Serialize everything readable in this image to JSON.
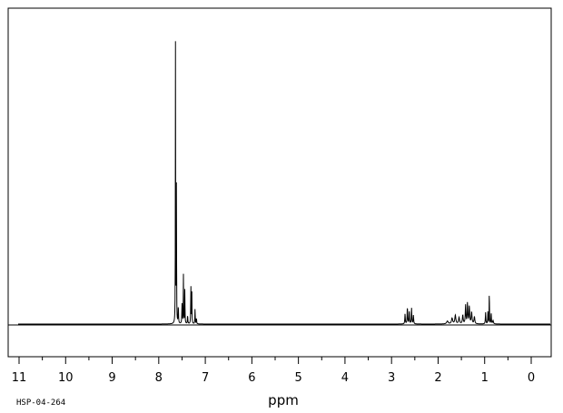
{
  "chart_data": {
    "type": "line",
    "title": "",
    "xlabel": "ppm",
    "ylabel": "",
    "sample_id": "HSP-04-264",
    "x_reversed": true,
    "xlim": [
      11,
      0
    ],
    "ylim": [
      0,
      1
    ],
    "grid": false,
    "line_color": "#000000",
    "tick_labels": [
      "11",
      "10",
      "9",
      "8",
      "7",
      "6",
      "5",
      "4",
      "3",
      "2",
      "1",
      "0"
    ],
    "tick_values": [
      11,
      10,
      9,
      8,
      7,
      6,
      5,
      4,
      3,
      2,
      1,
      0
    ],
    "minor_tick_step": 0.5,
    "peaks": [
      {
        "ppm": 7.64,
        "height": 1.0,
        "width": 0.006
      },
      {
        "ppm": 7.62,
        "height": 0.52,
        "width": 0.006
      },
      {
        "ppm": 7.58,
        "height": 0.06,
        "width": 0.01
      },
      {
        "ppm": 7.5,
        "height": 0.07,
        "width": 0.01
      },
      {
        "ppm": 7.47,
        "height": 0.17,
        "width": 0.008
      },
      {
        "ppm": 7.44,
        "height": 0.12,
        "width": 0.008
      },
      {
        "ppm": 7.38,
        "height": 0.03,
        "width": 0.01
      },
      {
        "ppm": 7.31,
        "height": 0.135,
        "width": 0.008
      },
      {
        "ppm": 7.29,
        "height": 0.11,
        "width": 0.008
      },
      {
        "ppm": 7.22,
        "height": 0.055,
        "width": 0.008
      },
      {
        "ppm": 7.19,
        "height": 0.02,
        "width": 0.01
      },
      {
        "ppm": 2.71,
        "height": 0.035,
        "width": 0.012
      },
      {
        "ppm": 2.66,
        "height": 0.06,
        "width": 0.012
      },
      {
        "ppm": 2.62,
        "height": 0.045,
        "width": 0.012
      },
      {
        "ppm": 2.57,
        "height": 0.055,
        "width": 0.012
      },
      {
        "ppm": 2.53,
        "height": 0.03,
        "width": 0.012
      },
      {
        "ppm": 1.8,
        "height": 0.01,
        "width": 0.04
      },
      {
        "ppm": 1.7,
        "height": 0.02,
        "width": 0.03
      },
      {
        "ppm": 1.63,
        "height": 0.03,
        "width": 0.025
      },
      {
        "ppm": 1.55,
        "height": 0.022,
        "width": 0.025
      },
      {
        "ppm": 1.47,
        "height": 0.03,
        "width": 0.02
      },
      {
        "ppm": 1.41,
        "height": 0.065,
        "width": 0.015
      },
      {
        "ppm": 1.37,
        "height": 0.07,
        "width": 0.015
      },
      {
        "ppm": 1.33,
        "height": 0.06,
        "width": 0.018
      },
      {
        "ppm": 1.28,
        "height": 0.04,
        "width": 0.02
      },
      {
        "ppm": 1.22,
        "height": 0.025,
        "width": 0.02
      },
      {
        "ppm": 0.98,
        "height": 0.04,
        "width": 0.012
      },
      {
        "ppm": 0.93,
        "height": 0.045,
        "width": 0.01
      },
      {
        "ppm": 0.9,
        "height": 0.14,
        "width": 0.006
      },
      {
        "ppm": 0.86,
        "height": 0.04,
        "width": 0.01
      },
      {
        "ppm": 0.82,
        "height": 0.012,
        "width": 0.02
      }
    ]
  }
}
